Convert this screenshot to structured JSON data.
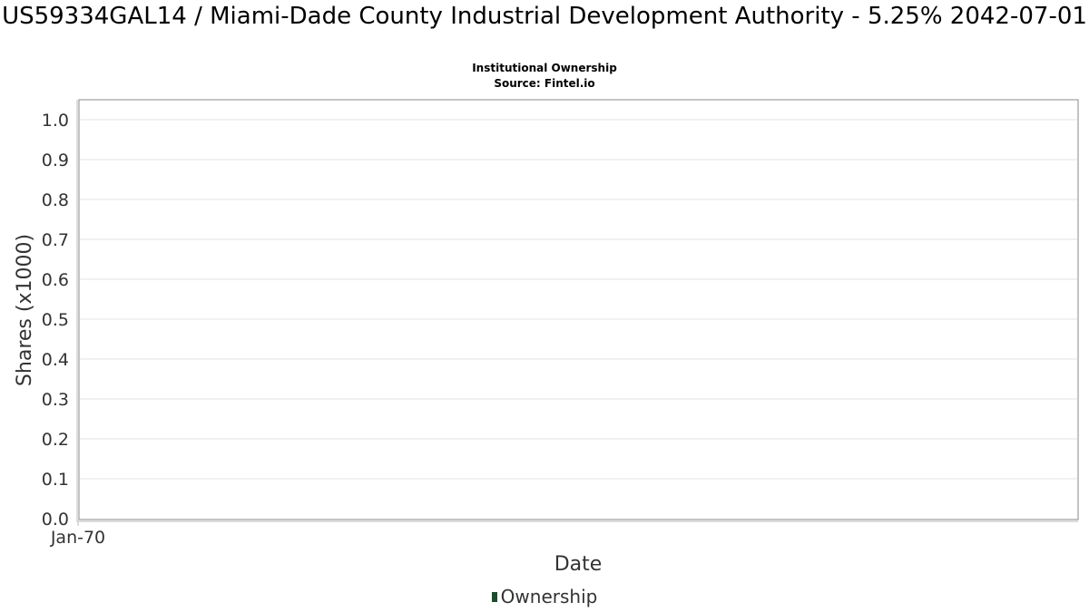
{
  "chart_data": {
    "type": "line",
    "title": "US59334GAL14 / Miami-Dade County Industrial Development Authority - 5.25% 2042-07-01",
    "subtitle": [
      "Institutional Ownership",
      "Source: Fintel.io"
    ],
    "xlabel": "Date",
    "ylabel": "Shares (x1000)",
    "x_tick_labels": [
      "Jan-70"
    ],
    "y_tick_labels": [
      "0.0",
      "0.1",
      "0.2",
      "0.3",
      "0.4",
      "0.5",
      "0.6",
      "0.7",
      "0.8",
      "0.9",
      "1.0"
    ],
    "ylim": [
      0,
      1.0
    ],
    "grid": true,
    "legend_placement": "bottom-center",
    "series": [
      {
        "name": "Ownership",
        "color": "#1a4d2e",
        "x": [],
        "y": []
      }
    ]
  }
}
